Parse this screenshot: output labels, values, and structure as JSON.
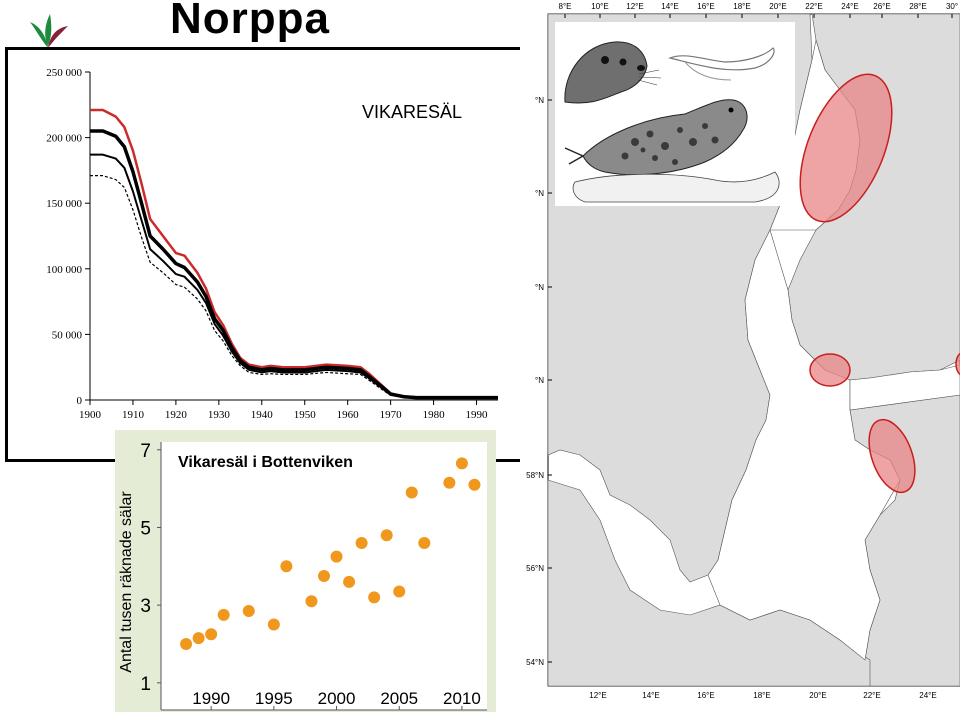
{
  "header": {
    "title": "Norppa"
  },
  "logo": {
    "icon": "leaf-logo-icon",
    "colors": [
      "#1e8a3e",
      "#8a1f3a"
    ]
  },
  "chart_data": [
    {
      "type": "line",
      "title": "VIKARESÄL",
      "xlabel": "",
      "ylabel": "",
      "xlim": [
        1900,
        1995
      ],
      "ylim": [
        0,
        250000
      ],
      "x_ticks": [
        1900,
        1910,
        1920,
        1930,
        1940,
        1950,
        1960,
        1970,
        1980,
        1990
      ],
      "y_ticks": [
        0,
        50000,
        100000,
        150000,
        200000,
        250000
      ],
      "y_tick_labels": [
        "0",
        "50 000",
        "100 000",
        "150 000",
        "200 000",
        "250 000"
      ],
      "grid": false,
      "series": [
        {
          "color": "#cc2b2b",
          "style": "solid",
          "width": 2.5,
          "x": [
            1900,
            1903,
            1906,
            1908,
            1910,
            1912,
            1914,
            1917,
            1920,
            1922,
            1925,
            1927,
            1929,
            1931,
            1933,
            1935,
            1937,
            1940,
            1942,
            1945,
            1950,
            1955,
            1960,
            1963,
            1965,
            1968,
            1970,
            1973,
            1976,
            1980,
            1985,
            1990,
            1995
          ],
          "y": [
            221000,
            221000,
            216000,
            208000,
            190000,
            165000,
            138000,
            125000,
            112000,
            110000,
            97000,
            85000,
            67000,
            57000,
            43000,
            32000,
            27000,
            25000,
            26000,
            25000,
            25000,
            27000,
            26000,
            25000,
            20000,
            11000,
            5000,
            3000,
            2000,
            2000,
            2000,
            2000,
            2000
          ]
        },
        {
          "color": "#000000",
          "style": "solid",
          "width": 3.5,
          "x": [
            1900,
            1903,
            1906,
            1908,
            1910,
            1912,
            1914,
            1917,
            1920,
            1922,
            1925,
            1927,
            1929,
            1931,
            1933,
            1935,
            1937,
            1940,
            1942,
            1945,
            1950,
            1955,
            1960,
            1963,
            1965,
            1968,
            1970,
            1973,
            1976,
            1980,
            1985,
            1990,
            1995
          ],
          "y": [
            205000,
            205000,
            201000,
            193000,
            174000,
            150000,
            125000,
            115000,
            104000,
            101000,
            90000,
            79000,
            62000,
            53000,
            40000,
            30000,
            25000,
            23000,
            24000,
            23000,
            23000,
            25000,
            24000,
            23000,
            18000,
            10000,
            4500,
            2500,
            1800,
            1800,
            1800,
            1800,
            1800
          ]
        },
        {
          "color": "#000000",
          "style": "solid",
          "width": 2,
          "x": [
            1900,
            1903,
            1906,
            1908,
            1910,
            1912,
            1914,
            1917,
            1920,
            1922,
            1925,
            1927,
            1929,
            1931,
            1933,
            1935,
            1937,
            1940,
            1942,
            1945,
            1950,
            1955,
            1960,
            1963,
            1965,
            1968,
            1970,
            1973,
            1976,
            1980,
            1985,
            1990,
            1995
          ],
          "y": [
            187000,
            187000,
            184000,
            177000,
            159000,
            137000,
            115000,
            106000,
            96000,
            94000,
            84000,
            74000,
            58000,
            49000,
            37000,
            28000,
            23000,
            21000,
            22000,
            21000,
            21000,
            23000,
            22000,
            21000,
            16500,
            9000,
            4000,
            2200,
            1500,
            1500,
            1500,
            1500,
            1500
          ]
        },
        {
          "color": "#000000",
          "style": "dashed",
          "width": 1.2,
          "x": [
            1900,
            1903,
            1906,
            1908,
            1910,
            1912,
            1914,
            1917,
            1920,
            1922,
            1925,
            1927,
            1929,
            1931,
            1933,
            1935,
            1937,
            1940,
            1942,
            1945,
            1950,
            1955,
            1960,
            1963,
            1965,
            1968,
            1970,
            1973,
            1976,
            1980,
            1985,
            1990,
            1995
          ],
          "y": [
            171000,
            171000,
            168000,
            162000,
            145000,
            124000,
            105000,
            97000,
            88000,
            86000,
            77000,
            68000,
            53000,
            45000,
            34000,
            26000,
            21000,
            19500,
            20000,
            19500,
            19500,
            21000,
            20000,
            19500,
            15000,
            8000,
            3500,
            2000,
            1300,
            1300,
            1300,
            1300,
            1300
          ]
        }
      ]
    },
    {
      "type": "scatter",
      "title": "Vikaresäl i Bottenviken",
      "xlabel": "",
      "ylabel": "Antal tusen räknade sälar",
      "xlim": [
        1986,
        2012
      ],
      "ylim": [
        0.3,
        7.2
      ],
      "x_ticks": [
        1990,
        1995,
        2000,
        2005,
        2010
      ],
      "y_ticks": [
        1,
        3,
        5,
        7
      ],
      "grid": false,
      "point_color": "#f0981e",
      "x": [
        1988,
        1989,
        1990,
        1991,
        1993,
        1995,
        1996,
        1998,
        1999,
        2000,
        2001,
        2002,
        2003,
        2004,
        2005,
        2006,
        2007,
        2009,
        2010,
        2011
      ],
      "y": [
        2.0,
        2.15,
        2.25,
        2.75,
        2.85,
        2.5,
        4.0,
        3.1,
        3.75,
        4.25,
        3.6,
        4.6,
        3.2,
        4.8,
        3.35,
        5.9,
        4.6,
        6.15,
        6.65,
        6.1
      ]
    }
  ],
  "map": {
    "lon_labels": [
      "8°E",
      "10°E",
      "12°E",
      "14°E",
      "16°E",
      "18°E",
      "20°E",
      "22°E",
      "24°E",
      "26°E",
      "28°E",
      "30°"
    ],
    "lon_labels_bottom": [
      "12°E",
      "14°E",
      "16°E",
      "18°E",
      "20°E",
      "22°E",
      "24°E"
    ],
    "lat_labels": [
      "°N",
      "°N",
      "°N",
      "°N",
      "58°N",
      "56°N",
      "54°N"
    ],
    "land_color": "#dcdcdc",
    "sea_color": "#ffffff",
    "highlight_color": "#e88585",
    "highlight_stroke": "#c81e1e"
  },
  "illustration": {
    "icon": "ringed-seal-drawing-icon"
  }
}
